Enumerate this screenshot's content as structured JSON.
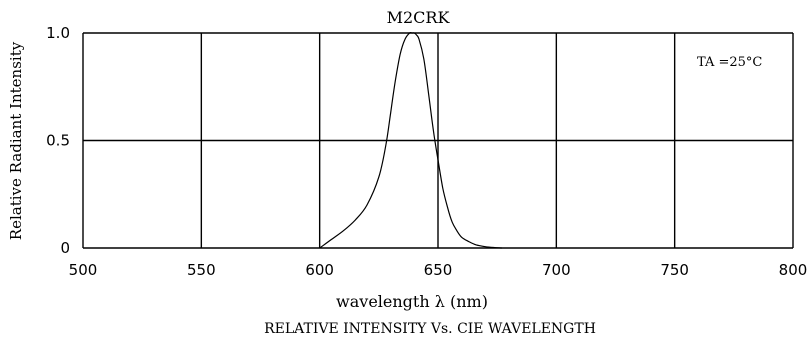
{
  "chart_data": {
    "type": "line",
    "title": "M2CRK",
    "xlabel": "wavelength λ (nm)",
    "ylabel": "Relative Radiant Intensity",
    "caption": "RELATIVE INTENSITY Vs. CIE WAVELENGTH",
    "annotation": "TA =25°C",
    "xlim": [
      500,
      800
    ],
    "ylim": [
      0,
      1.0
    ],
    "x_ticks": [
      500,
      550,
      600,
      650,
      700,
      750,
      800
    ],
    "y_ticks": [
      {
        "value": 0,
        "label": "0"
      },
      {
        "value": 0.5,
        "label": "0.5"
      },
      {
        "value": 1.0,
        "label": "1.0"
      }
    ],
    "grid": true,
    "series": [
      {
        "x": [
          600,
          605,
          610,
          615,
          620,
          625,
          628,
          630,
          632,
          634,
          636,
          638,
          639,
          640,
          641,
          642,
          644,
          646,
          648,
          650,
          652,
          654,
          656,
          658,
          660,
          663,
          666,
          670,
          674,
          677
        ],
        "y": [
          0.0,
          0.04,
          0.08,
          0.13,
          0.2,
          0.33,
          0.48,
          0.63,
          0.78,
          0.9,
          0.97,
          1.0,
          1.0,
          1.0,
          0.99,
          0.97,
          0.88,
          0.72,
          0.55,
          0.41,
          0.28,
          0.19,
          0.12,
          0.08,
          0.05,
          0.03,
          0.015,
          0.006,
          0.002,
          0.0
        ]
      }
    ]
  }
}
